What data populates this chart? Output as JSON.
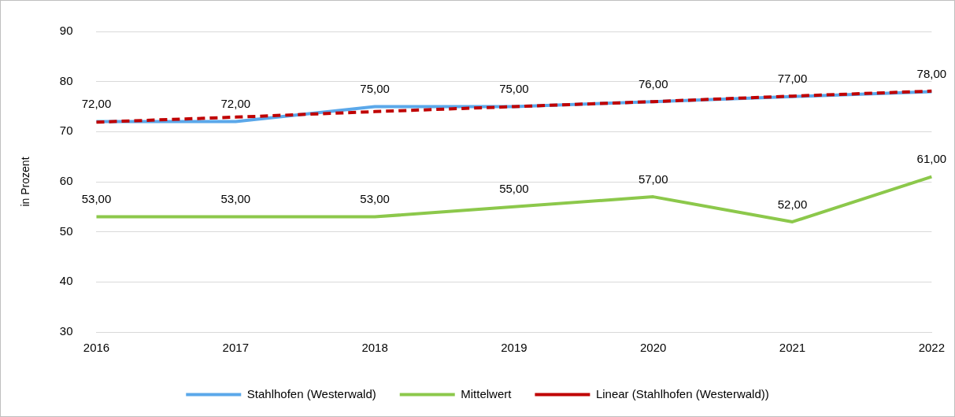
{
  "chart_data": {
    "type": "line",
    "ylabel": "in Prozent",
    "categories": [
      "2016",
      "2017",
      "2018",
      "2019",
      "2020",
      "2021",
      "2022"
    ],
    "series": [
      {
        "name": "Stahlhofen (Westerwald)",
        "color": "#5ba8ea",
        "values": [
          72,
          72,
          75,
          75,
          76,
          77,
          78
        ],
        "value_labels": [
          "72,00",
          "72,00",
          "75,00",
          "75,00",
          "76,00",
          "77,00",
          "78,00"
        ]
      },
      {
        "name": "Mittelwert",
        "color": "#8cc84b",
        "values": [
          53,
          53,
          53,
          55,
          57,
          52,
          61
        ],
        "value_labels": [
          "53,00",
          "53,00",
          "53,00",
          "55,00",
          "57,00",
          "52,00",
          "61,00"
        ]
      },
      {
        "name": "Linear (Stahlhofen (Westerwald))",
        "color": "#c00000",
        "values": [
          71.9,
          72.9,
          74.0,
          75.0,
          76.0,
          77.1,
          78.1
        ],
        "line_style": "dashed"
      }
    ],
    "ylim": [
      30,
      90
    ],
    "yticks": [
      30,
      40,
      50,
      60,
      70,
      80,
      90
    ],
    "grid": "y",
    "legend": "bottom",
    "marker": "none"
  }
}
